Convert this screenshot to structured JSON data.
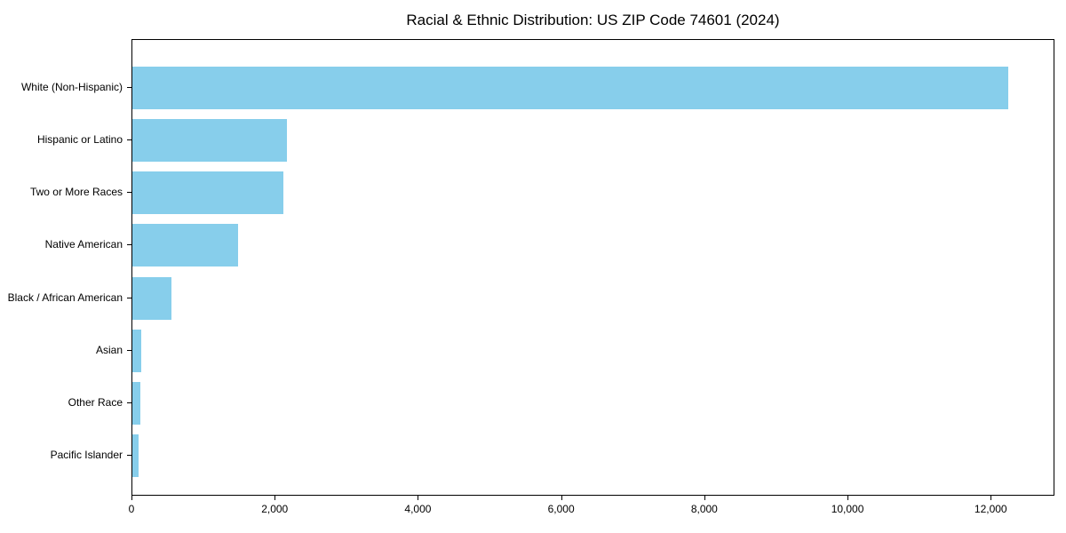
{
  "title": "Racial & Ethnic Distribution: US ZIP Code 74601 (2024)",
  "colors": {
    "bar": "#87CEEB",
    "axis": "#000000",
    "background": "#ffffff",
    "text": "#000000"
  },
  "chart_data": {
    "type": "bar",
    "orientation": "horizontal",
    "title": "Racial & Ethnic Distribution: US ZIP Code 74601 (2024)",
    "categories": [
      "White (Non-Hispanic)",
      "Hispanic or Latino",
      "Two or More Races",
      "Native American",
      "Black / African American",
      "Asian",
      "Other Race",
      "Pacific Islander"
    ],
    "values": [
      12260,
      2165,
      2115,
      1480,
      550,
      125,
      115,
      85
    ],
    "xlabel": "",
    "ylabel": "",
    "xlim": [
      0,
      12890
    ],
    "xticks": [
      0,
      2000,
      4000,
      6000,
      8000,
      10000,
      12000
    ],
    "xtick_labels": [
      "0",
      "2,000",
      "4,000",
      "6,000",
      "8,000",
      "10,000",
      "12,000"
    ],
    "grid": false,
    "legend": null,
    "bar_color": "#87CEEB"
  }
}
